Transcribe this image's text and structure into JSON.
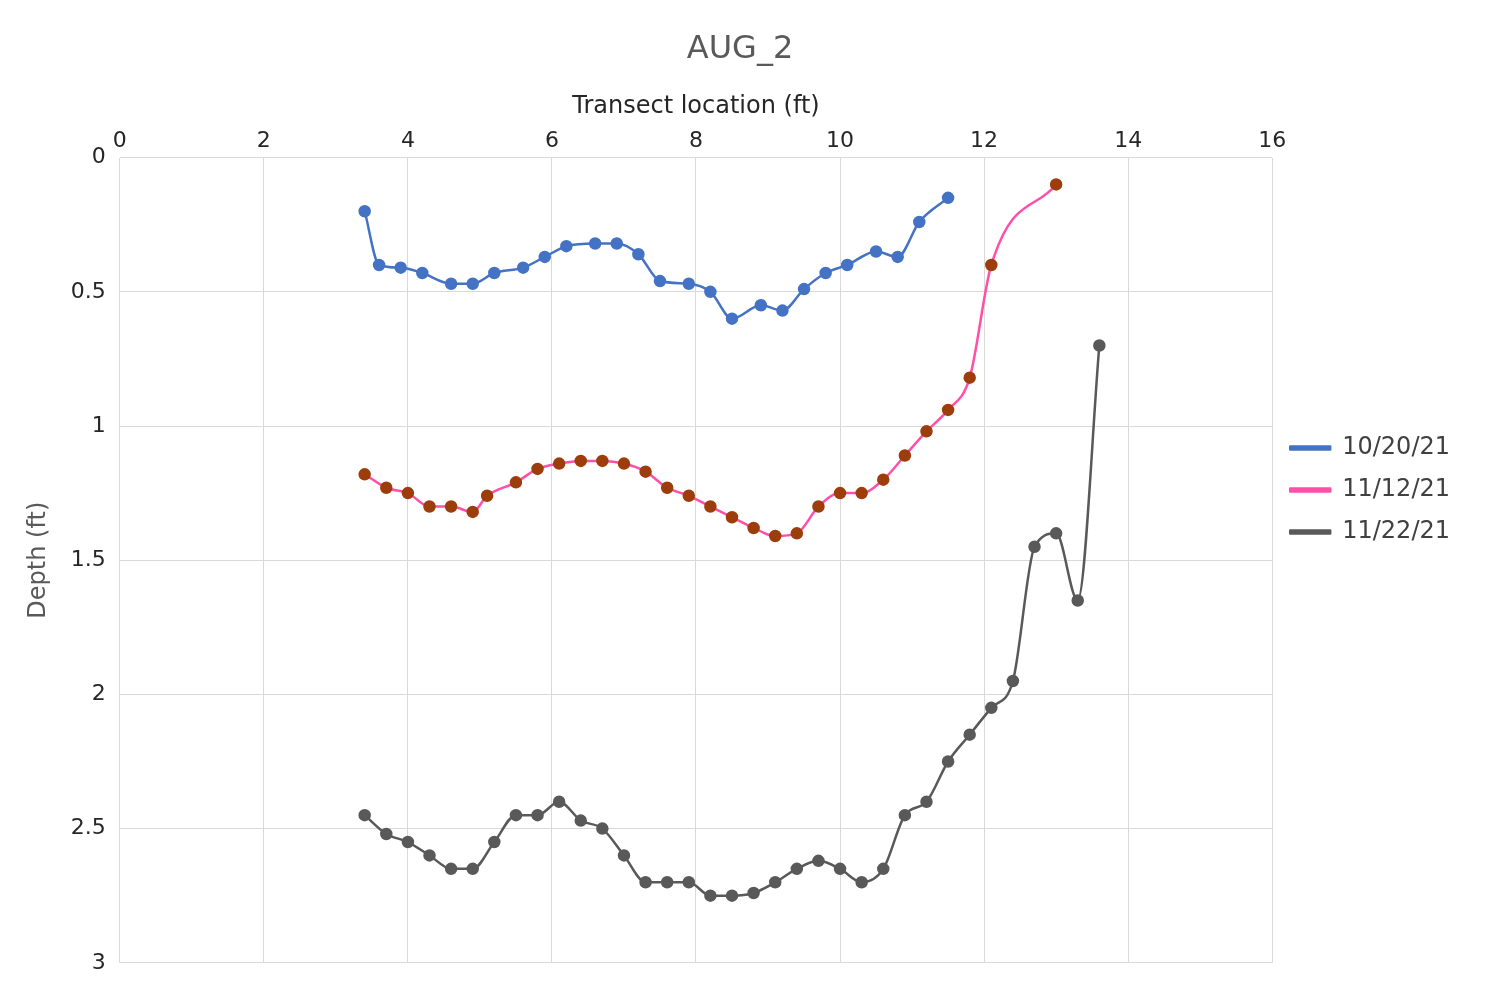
{
  "chart_data": {
    "type": "line",
    "title": "AUG_2",
    "xlabel": "Transect location (ft)",
    "ylabel": "Depth (ft)",
    "xlim": [
      0,
      16
    ],
    "xticks": [
      0,
      2,
      4,
      6,
      8,
      10,
      12,
      14,
      16
    ],
    "ylim": [
      3,
      0
    ],
    "yticks": [
      0,
      0.5,
      1,
      1.5,
      2,
      2.5,
      3
    ],
    "grid": true,
    "legend": "right",
    "marker": "circle",
    "line_style": "solid",
    "series": [
      {
        "name": "10/20/21",
        "color": "#4472c4",
        "x": [
          3.4,
          3.6,
          3.9,
          4.2,
          4.6,
          4.9,
          5.2,
          5.6,
          5.9,
          6.2,
          6.6,
          6.9,
          7.2,
          7.5,
          7.9,
          8.2,
          8.5,
          8.9,
          9.2,
          9.5,
          9.8,
          10.1,
          10.5,
          10.8,
          11.1,
          11.5
        ],
        "values": [
          0.2,
          0.4,
          0.41,
          0.43,
          0.47,
          0.47,
          0.43,
          0.41,
          0.37,
          0.33,
          0.32,
          0.32,
          0.36,
          0.46,
          0.47,
          0.5,
          0.6,
          0.55,
          0.57,
          0.49,
          0.43,
          0.4,
          0.35,
          0.37,
          0.24,
          0.15
        ]
      },
      {
        "name": "11/12/21",
        "color": "#ff4fa8",
        "colors": [
          "#9e3d0c",
          "#9e3d0c",
          "#9e3d0c",
          "#9e3d0c",
          "#9e3d0c",
          "#9e3d0c",
          "#9e3d0c",
          "#9e3d0c",
          "#9e3d0c",
          "#9e3d0c",
          "#9e3d0c",
          "#9e3d0c",
          "#9e3d0c",
          "#9e3d0c",
          "#9e3d0c",
          "#9e3d0c",
          "#9e3d0c",
          "#9e3d0c",
          "#9e3d0c",
          "#9e3d0c",
          "#9e3d0c",
          "#9e3d0c",
          "#9e3d0c",
          "#9e3d0c",
          "#9e3d0c",
          "#9e3d0c",
          "#9e3d0c",
          "#9e3d0c",
          "#9e3d0c",
          "#9e3d0c",
          "#9e3d0c"
        ],
        "x": [
          3.4,
          3.7,
          4.0,
          4.3,
          4.6,
          4.9,
          5.1,
          5.5,
          5.8,
          6.1,
          6.4,
          6.7,
          7.0,
          7.3,
          7.6,
          7.9,
          8.2,
          8.5,
          8.8,
          9.1,
          9.4,
          9.7,
          10.0,
          10.3,
          10.6,
          10.9,
          11.2,
          11.5,
          11.8,
          12.1,
          13.0
        ],
        "values": [
          1.18,
          1.23,
          1.25,
          1.3,
          1.3,
          1.32,
          1.26,
          1.21,
          1.16,
          1.14,
          1.13,
          1.13,
          1.14,
          1.17,
          1.23,
          1.26,
          1.3,
          1.34,
          1.38,
          1.41,
          1.4,
          1.3,
          1.25,
          1.25,
          1.2,
          1.11,
          1.02,
          0.94,
          0.82,
          0.4,
          0.1
        ]
      },
      {
        "name": "11/22/21",
        "color": "#595959",
        "x": [
          3.4,
          3.7,
          4.0,
          4.3,
          4.6,
          4.9,
          5.2,
          5.5,
          5.8,
          6.1,
          6.4,
          6.7,
          7.0,
          7.3,
          7.6,
          7.9,
          8.2,
          8.5,
          8.8,
          9.1,
          9.4,
          9.7,
          10.0,
          10.3,
          10.6,
          10.9,
          11.2,
          11.5,
          11.8,
          12.1,
          12.4,
          12.7,
          13.0,
          13.3,
          13.6
        ],
        "values": [
          2.45,
          2.52,
          2.55,
          2.6,
          2.65,
          2.65,
          2.55,
          2.45,
          2.45,
          2.4,
          2.47,
          2.5,
          2.6,
          2.7,
          2.7,
          2.7,
          2.75,
          2.75,
          2.74,
          2.7,
          2.65,
          2.62,
          2.65,
          2.7,
          2.65,
          2.45,
          2.4,
          2.25,
          2.15,
          2.05,
          1.95,
          1.45,
          1.4,
          1.65,
          0.7
        ]
      }
    ]
  }
}
